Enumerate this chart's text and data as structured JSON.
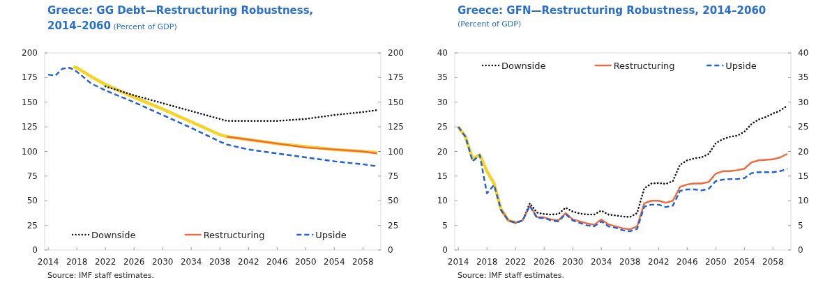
{
  "chart_data": [
    {
      "type": "line",
      "title": "Greece: GG Debt—Restructuring Robustness, 2014–2060",
      "subtitle": "(Percent of GDP)",
      "annotations": [
        "Source: IMF staff estimates."
      ],
      "xlim": [
        2013.5,
        2060.5
      ],
      "xticks": [
        2014,
        2018,
        2022,
        2026,
        2030,
        2034,
        2038,
        2042,
        2046,
        2050,
        2054,
        2058
      ],
      "ylim": [
        0,
        200
      ],
      "yticks": [
        0,
        25,
        50,
        75,
        100,
        125,
        150,
        175,
        200
      ],
      "y2lim": [
        0,
        200
      ],
      "y2ticks": [
        0,
        25,
        50,
        75,
        100,
        125,
        150,
        175,
        200
      ],
      "legend": "bottom",
      "marker": "none",
      "series": [
        {
          "color": "#f5d327",
          "line_style": "solid",
          "x": [
            2017.5,
            2018,
            2020,
            2022,
            2026,
            2030,
            2034,
            2038,
            2039,
            2042,
            2046,
            2050,
            2054,
            2058,
            2060
          ],
          "values": [
            186,
            185,
            176,
            168,
            155,
            143,
            130,
            117,
            115,
            112,
            108,
            105,
            102,
            100,
            99
          ]
        },
        {
          "name": "Downside",
          "color": "#111111",
          "line_style": "dotted",
          "x": [
            2022,
            2026,
            2030,
            2034,
            2038,
            2039,
            2042,
            2046,
            2050,
            2054,
            2058,
            2060
          ],
          "values": [
            166,
            157,
            149,
            141,
            133,
            131,
            131,
            131,
            133,
            137,
            140,
            142
          ]
        },
        {
          "name": "Restructuring",
          "color": "#ee6a3c",
          "line_style": "solid",
          "x": [
            2039,
            2042,
            2046,
            2050,
            2054,
            2058,
            2060
          ],
          "values": [
            115,
            112,
            108,
            104,
            102,
            100,
            98
          ]
        },
        {
          "name": "Upside",
          "color": "#1f5fd6",
          "line_style": "dashed",
          "x": [
            2014,
            2015,
            2016,
            2017,
            2018,
            2019,
            2020,
            2022,
            2026,
            2030,
            2034,
            2038,
            2039,
            2042,
            2046,
            2050,
            2054,
            2058,
            2060
          ],
          "values": [
            178,
            177,
            184,
            185,
            181,
            175,
            169,
            162,
            150,
            137,
            124,
            110,
            107,
            102,
            98,
            94,
            90,
            87,
            85
          ]
        }
      ]
    },
    {
      "type": "line",
      "title": "Greece: GFN—Restructuring Robustness, 2014–2060",
      "subtitle": "(Percent of GDP)",
      "annotations": [
        "Source: IMF staff estimates."
      ],
      "xlim": [
        2013.5,
        2060.5
      ],
      "xticks": [
        2014,
        2018,
        2022,
        2026,
        2030,
        2034,
        2038,
        2042,
        2046,
        2050,
        2054,
        2058
      ],
      "ylim": [
        0,
        40
      ],
      "yticks": [
        0,
        5,
        10,
        15,
        20,
        25,
        30,
        35,
        40
      ],
      "y2lim": [
        0,
        40
      ],
      "y2ticks": [
        0,
        5,
        10,
        15,
        20,
        25,
        30,
        35,
        40
      ],
      "legend": "top",
      "marker": "none",
      "series": [
        {
          "color": "#f5d327",
          "line_style": "solid",
          "x": [
            2014,
            2015,
            2016,
            2017,
            2018,
            2019,
            2020,
            2021,
            2022
          ],
          "values": [
            25,
            23,
            18.5,
            19.3,
            16,
            13.5,
            8.2,
            6,
            5.6
          ]
        },
        {
          "name": "Downside",
          "color": "#111111",
          "line_style": "dotted",
          "x": [
            2022,
            2023,
            2024,
            2025,
            2026,
            2027,
            2028,
            2029,
            2030,
            2031,
            2032,
            2033,
            2034,
            2035,
            2036,
            2037,
            2038,
            2039,
            2040,
            2041,
            2042,
            2043,
            2044,
            2045,
            2046,
            2047,
            2048,
            2049,
            2050,
            2051,
            2052,
            2053,
            2054,
            2055,
            2056,
            2057,
            2058,
            2059,
            2060
          ],
          "values": [
            5.5,
            6,
            9.5,
            7.6,
            7.3,
            7.2,
            7.3,
            8.6,
            7.8,
            7.4,
            7.2,
            7.2,
            8,
            7.2,
            7,
            6.8,
            6.7,
            7.5,
            12.5,
            13.5,
            13.6,
            13.4,
            14,
            17.3,
            18.2,
            18.6,
            18.8,
            19.5,
            21.7,
            22.5,
            23,
            23.2,
            24,
            25.6,
            26.5,
            27,
            27.7,
            28.3,
            29.3
          ]
        },
        {
          "name": "Restructuring",
          "color": "#ee6a3c",
          "line_style": "solid",
          "x": [
            2020,
            2021,
            2022,
            2023,
            2024,
            2025,
            2026,
            2027,
            2028,
            2029,
            2030,
            2031,
            2032,
            2033,
            2034,
            2035,
            2036,
            2037,
            2038,
            2039,
            2040,
            2041,
            2042,
            2043,
            2044,
            2045,
            2046,
            2047,
            2048,
            2049,
            2050,
            2051,
            2052,
            2053,
            2054,
            2055,
            2056,
            2057,
            2058,
            2059,
            2060
          ],
          "values": [
            8.2,
            6,
            5.6,
            6,
            9,
            6.7,
            6.6,
            6.2,
            6,
            7.5,
            6.2,
            5.8,
            5.4,
            5.1,
            6.2,
            5.2,
            4.8,
            4.4,
            4.2,
            4.8,
            9.5,
            10,
            10,
            9.6,
            10,
            12.8,
            13.3,
            13.5,
            13.5,
            13.8,
            15.5,
            16,
            16,
            16.2,
            16.5,
            17.8,
            18.2,
            18.3,
            18.4,
            18.8,
            19.5
          ]
        },
        {
          "name": "Upside",
          "color": "#1f5fd6",
          "line_style": "dashed",
          "x": [
            2014,
            2015,
            2016,
            2017,
            2018,
            2019,
            2020,
            2021,
            2022,
            2023,
            2024,
            2025,
            2026,
            2027,
            2028,
            2029,
            2030,
            2031,
            2032,
            2033,
            2034,
            2035,
            2036,
            2037,
            2038,
            2039,
            2040,
            2041,
            2042,
            2043,
            2044,
            2045,
            2046,
            2047,
            2048,
            2049,
            2050,
            2051,
            2052,
            2053,
            2054,
            2055,
            2056,
            2057,
            2058,
            2059,
            2060
          ],
          "values": [
            25,
            23,
            18,
            19.3,
            11.5,
            13.2,
            8,
            6,
            5.5,
            6,
            9,
            6.5,
            6.5,
            6,
            5.8,
            7.3,
            6,
            5.5,
            5,
            4.8,
            5.8,
            4.8,
            4.5,
            4,
            3.8,
            4.3,
            8.8,
            9.2,
            9.2,
            8.7,
            9,
            12,
            12.3,
            12.3,
            12.1,
            12.4,
            14,
            14.3,
            14.4,
            14.4,
            14.6,
            15.6,
            15.8,
            15.8,
            15.8,
            16,
            16.5
          ]
        }
      ]
    }
  ]
}
